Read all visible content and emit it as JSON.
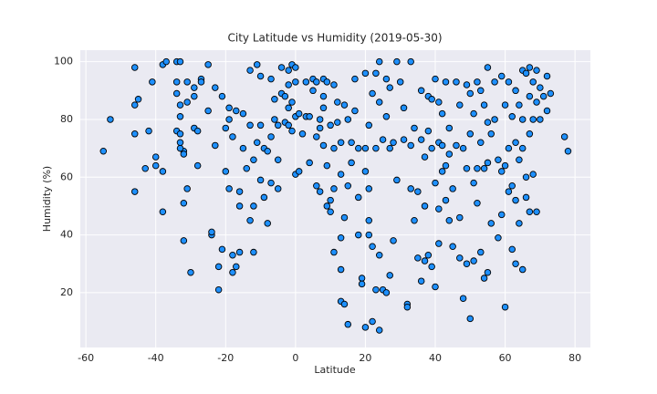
{
  "chart_data": {
    "type": "scatter",
    "title": "City Latitude vs Humidity (2019-05-30)",
    "x_label": "Latitude",
    "y_label": "Humidity (%)",
    "x": [
      -55,
      -53,
      -46,
      -46,
      -46,
      -45,
      -46,
      -43,
      -42,
      -41,
      -40,
      -40,
      -38,
      -38,
      -37,
      -38,
      -34,
      -34,
      -33,
      -34,
      -33,
      -34,
      -33,
      -33,
      -32,
      -33,
      -33,
      -32,
      -32,
      -32,
      -31,
      -31,
      -30,
      -31,
      -29,
      -29,
      -29,
      -28,
      -28,
      -27,
      -27,
      -25,
      -25,
      -24,
      -24,
      -23,
      -23,
      -22,
      -22,
      -21,
      -21,
      -20,
      -20,
      -19,
      -19,
      -19,
      -18,
      -18,
      -18,
      -17,
      -17,
      -16,
      -16,
      -16,
      -15,
      -15,
      -14,
      -13,
      -13,
      -13,
      -12,
      -12,
      -12,
      -11,
      -11,
      -10,
      -10,
      -10,
      -9,
      -9,
      -8,
      -8,
      -7,
      -7,
      -7,
      -6,
      -6,
      -5,
      -5,
      -5,
      -4,
      -4,
      -3,
      -3,
      -2,
      -2,
      -2,
      -2,
      -1,
      -1,
      -1,
      0,
      0,
      0,
      0,
      1,
      1,
      2,
      3,
      3,
      4,
      4,
      5,
      5,
      6,
      6,
      6,
      7,
      7,
      7,
      8,
      8,
      8,
      8,
      9,
      9,
      9,
      10,
      10,
      10,
      11,
      11,
      11,
      11,
      12,
      12,
      13,
      13,
      13,
      13,
      13,
      14,
      14,
      14,
      15,
      15,
      15,
      16,
      16,
      17,
      17,
      18,
      18,
      18,
      19,
      19,
      20,
      20,
      20,
      20,
      21,
      21,
      21,
      21,
      22,
      22,
      22,
      23,
      23,
      23,
      24,
      24,
      24,
      24,
      25,
      25,
      26,
      26,
      26,
      27,
      27,
      27,
      28,
      28,
      29,
      29,
      30,
      31,
      31,
      32,
      32,
      33,
      33,
      33,
      34,
      34,
      35,
      35,
      36,
      36,
      36,
      37,
      37,
      37,
      38,
      38,
      38,
      39,
      39,
      39,
      40,
      40,
      40,
      41,
      41,
      41,
      41,
      42,
      42,
      42,
      43,
      43,
      43,
      44,
      44,
      44,
      45,
      45,
      46,
      46,
      47,
      47,
      47,
      48,
      48,
      49,
      49,
      49,
      50,
      50,
      50,
      51,
      51,
      51,
      52,
      52,
      52,
      53,
      53,
      53,
      54,
      54,
      54,
      55,
      55,
      55,
      55,
      56,
      56,
      57,
      57,
      58,
      58,
      59,
      59,
      59,
      60,
      60,
      60,
      61,
      61,
      61,
      62,
      62,
      62,
      63,
      63,
      63,
      63,
      64,
      64,
      64,
      65,
      65,
      65,
      65,
      66,
      66,
      66,
      67,
      67,
      67,
      67,
      68,
      68,
      68,
      69,
      69,
      69,
      70,
      70,
      71,
      72,
      72,
      73,
      77,
      78
    ],
    "values": [
      69,
      80,
      98,
      55,
      85,
      87,
      75,
      63,
      76,
      93,
      67,
      64,
      99,
      48,
      100,
      62,
      100,
      93,
      100,
      89,
      85,
      76,
      81,
      75,
      69,
      70,
      72,
      68,
      51,
      38,
      56,
      86,
      27,
      93,
      91,
      88,
      77,
      76,
      64,
      94,
      93,
      99,
      83,
      40,
      41,
      91,
      71,
      21,
      29,
      35,
      88,
      77,
      62,
      84,
      80,
      56,
      74,
      33,
      27,
      83,
      29,
      55,
      50,
      34,
      82,
      70,
      63,
      97,
      78,
      45,
      66,
      50,
      34,
      99,
      72,
      95,
      78,
      59,
      70,
      53,
      44,
      69,
      74,
      58,
      94,
      87,
      80,
      78,
      66,
      56,
      98,
      89,
      88,
      79,
      97,
      92,
      84,
      78,
      76,
      99,
      86,
      98,
      93,
      61,
      81,
      82,
      62,
      75,
      81,
      93,
      81,
      65,
      94,
      90,
      74,
      57,
      93,
      77,
      80,
      55,
      94,
      88,
      84,
      71,
      93,
      64,
      50,
      78,
      52,
      48,
      92,
      70,
      56,
      34,
      86,
      79,
      72,
      61,
      39,
      28,
      17,
      85,
      46,
      16,
      80,
      57,
      9,
      72,
      65,
      94,
      83,
      70,
      53,
      40,
      25,
      23,
      96,
      70,
      62,
      8,
      78,
      56,
      45,
      40,
      89,
      36,
      10,
      96,
      70,
      21,
      100,
      86,
      33,
      7,
      73,
      21,
      94,
      81,
      20,
      91,
      70,
      26,
      72,
      38,
      100,
      59,
      93,
      84,
      73,
      16,
      15,
      100,
      71,
      56,
      77,
      45,
      55,
      32,
      90,
      73,
      24,
      67,
      50,
      31,
      88,
      76,
      33,
      87,
      70,
      29,
      94,
      58,
      22,
      86,
      72,
      49,
      37,
      82,
      71,
      62,
      93,
      64,
      52,
      77,
      68,
      45,
      56,
      36,
      93,
      71,
      85,
      46,
      32,
      70,
      18,
      92,
      63,
      30,
      89,
      75,
      11,
      82,
      58,
      31,
      93,
      63,
      51,
      90,
      72,
      34,
      85,
      63,
      25,
      98,
      79,
      65,
      27,
      75,
      44,
      93,
      80,
      66,
      39,
      95,
      62,
      47,
      85,
      64,
      15,
      93,
      70,
      55,
      81,
      57,
      35,
      90,
      72,
      52,
      30,
      85,
      66,
      44,
      97,
      80,
      70,
      28,
      96,
      60,
      53,
      98,
      88,
      75,
      48,
      93,
      80,
      61,
      97,
      86,
      48,
      91,
      80,
      88,
      95,
      83,
      89,
      74,
      69
    ],
    "color": "#1e90ff",
    "edgecolor": "#000000",
    "xlim": [
      -61.6,
      84.4
    ],
    "ylim": [
      1,
      104
    ],
    "xticks": [
      -60,
      -40,
      -20,
      0,
      20,
      40,
      60,
      80
    ],
    "yticks": [
      20,
      40,
      60,
      80,
      100
    ],
    "grid": true
  }
}
